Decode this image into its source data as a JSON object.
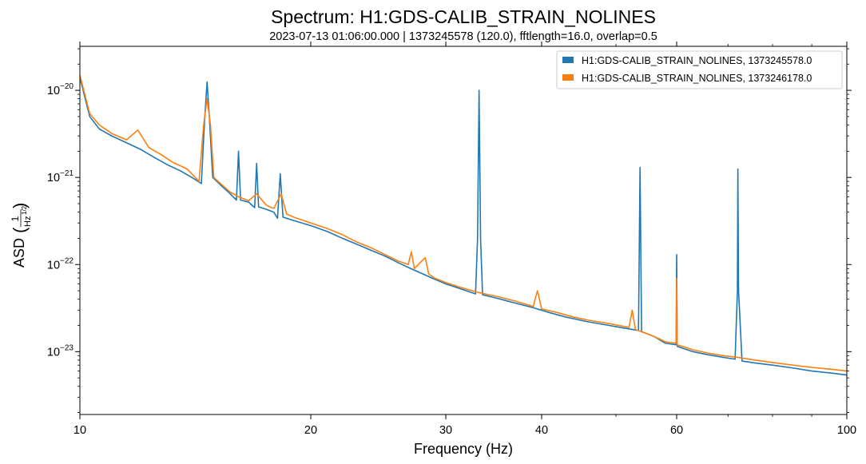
{
  "chart_data": {
    "type": "line",
    "title": "Spectrum: H1:GDS-CALIB_STRAIN_NOLINES",
    "subtitle": "2023-07-13 01:06:00.000 | 1373245578 (120.0), fftlength=16.0, overlap=0.5",
    "xlabel": "Frequency (Hz)",
    "ylabel": "ASD",
    "ylabel_unit": {
      "num": "1",
      "den": "Hz",
      "exp": "1/2"
    },
    "x_scale": "log",
    "y_scale": "log",
    "xlim": [
      10,
      100
    ],
    "ylim": [
      1.9e-24,
      3.2e-20
    ],
    "x_ticks": [
      {
        "value": 10,
        "label": "10"
      },
      {
        "value": 20,
        "label": "20"
      },
      {
        "value": 30,
        "label": "30"
      },
      {
        "value": 40,
        "label": "40"
      },
      {
        "value": 60,
        "label": "60"
      },
      {
        "value": 100,
        "label": "100"
      }
    ],
    "y_ticks": [
      {
        "value": 1e-20,
        "base": "10",
        "exp": "−20"
      },
      {
        "value": 1e-21,
        "base": "10",
        "exp": "−21"
      },
      {
        "value": 1e-22,
        "base": "10",
        "exp": "−22"
      },
      {
        "value": 1e-23,
        "base": "10",
        "exp": "−23"
      }
    ],
    "grid": false,
    "legend_position": "top-right",
    "series": [
      {
        "name": "H1:GDS-CALIB_STRAIN_NOLINES, 1373245578.0",
        "color": "#1f77b4",
        "points": [
          [
            10.0,
            1.4e-20
          ],
          [
            10.3,
            5e-21
          ],
          [
            10.6,
            3.6e-21
          ],
          [
            11.0,
            3e-21
          ],
          [
            11.5,
            2.5e-21
          ],
          [
            12.0,
            2.1e-21
          ],
          [
            12.5,
            1.7e-21
          ],
          [
            13.0,
            1.4e-21
          ],
          [
            13.5,
            1.2e-21
          ],
          [
            14.0,
            1e-21
          ],
          [
            14.4,
            8.5e-22
          ],
          [
            14.55,
            5e-21
          ],
          [
            14.65,
            1.25e-20
          ],
          [
            14.75,
            5e-21
          ],
          [
            14.9,
            1e-21
          ],
          [
            15.3,
            8e-22
          ],
          [
            15.7,
            6.5e-22
          ],
          [
            16.0,
            5.5e-22
          ],
          [
            16.1,
            2e-21
          ],
          [
            16.2,
            5.5e-22
          ],
          [
            16.6,
            5.2e-22
          ],
          [
            16.9,
            4.5e-22
          ],
          [
            17.0,
            1.45e-21
          ],
          [
            17.1,
            4.6e-22
          ],
          [
            17.5,
            4.3e-22
          ],
          [
            17.9,
            4e-22
          ],
          [
            18.1,
            3.4e-22
          ],
          [
            18.25,
            1.1e-21
          ],
          [
            18.4,
            3.5e-22
          ],
          [
            19.0,
            3.2e-22
          ],
          [
            20.0,
            2.8e-22
          ],
          [
            21.0,
            2.4e-22
          ],
          [
            22.0,
            2e-22
          ],
          [
            23.0,
            1.7e-22
          ],
          [
            24.0,
            1.45e-22
          ],
          [
            25.0,
            1.25e-22
          ],
          [
            26.0,
            1.05e-22
          ],
          [
            27.0,
            9e-23
          ],
          [
            28.0,
            7.8e-23
          ],
          [
            29.0,
            6.8e-23
          ],
          [
            30.0,
            6e-23
          ],
          [
            31.5,
            5.2e-23
          ],
          [
            32.8,
            4.6e-23
          ],
          [
            33.0,
            2e-22
          ],
          [
            33.15,
            1e-20
          ],
          [
            33.3,
            2e-22
          ],
          [
            33.5,
            4.5e-23
          ],
          [
            35.0,
            4.1e-23
          ],
          [
            37.0,
            3.6e-23
          ],
          [
            39.0,
            3.2e-23
          ],
          [
            41.0,
            2.8e-23
          ],
          [
            43.0,
            2.5e-23
          ],
          [
            46.0,
            2.2e-23
          ],
          [
            49.0,
            2e-23
          ],
          [
            51.5,
            1.85e-23
          ],
          [
            53.5,
            1.75e-23
          ],
          [
            53.75,
            1.3e-21
          ],
          [
            54.0,
            1.7e-23
          ],
          [
            56.0,
            1.5e-23
          ],
          [
            58.0,
            1.25e-23
          ],
          [
            59.9,
            1.2e-23
          ],
          [
            60.0,
            1.3e-22
          ],
          [
            60.1,
            1.15e-23
          ],
          [
            63.0,
            1e-23
          ],
          [
            66.0,
            9.2e-24
          ],
          [
            69.0,
            8.6e-24
          ],
          [
            71.5,
            8.2e-24
          ],
          [
            72.0,
            5e-23
          ],
          [
            72.1,
            1.25e-21
          ],
          [
            72.25,
            5e-23
          ],
          [
            73.0,
            7.8e-24
          ],
          [
            76.0,
            7.4e-24
          ],
          [
            80.0,
            7e-24
          ],
          [
            85.0,
            6.5e-24
          ],
          [
            90.0,
            6e-24
          ],
          [
            95.0,
            5.7e-24
          ],
          [
            100.0,
            5.4e-24
          ]
        ]
      },
      {
        "name": "H1:GDS-CALIB_STRAIN_NOLINES, 1373246178.0",
        "color": "#ff7f0e",
        "points": [
          [
            10.0,
            1.5e-20
          ],
          [
            10.3,
            5.4e-21
          ],
          [
            10.6,
            4e-21
          ],
          [
            11.0,
            3.2e-21
          ],
          [
            11.5,
            2.7e-21
          ],
          [
            11.9,
            3.5e-21
          ],
          [
            12.3,
            2.2e-21
          ],
          [
            12.8,
            1.8e-21
          ],
          [
            13.2,
            1.5e-21
          ],
          [
            13.8,
            1.25e-21
          ],
          [
            14.3,
            9e-22
          ],
          [
            14.5,
            4e-21
          ],
          [
            14.65,
            8e-21
          ],
          [
            14.8,
            4e-21
          ],
          [
            14.95,
            1e-21
          ],
          [
            15.3,
            8.3e-22
          ],
          [
            15.7,
            6.8e-22
          ],
          [
            16.1,
            6e-22
          ],
          [
            16.6,
            5.4e-22
          ],
          [
            17.0,
            6.5e-22
          ],
          [
            17.5,
            4.8e-22
          ],
          [
            17.9,
            4.4e-22
          ],
          [
            18.3,
            6.5e-22
          ],
          [
            18.6,
            3.8e-22
          ],
          [
            19.0,
            3.5e-22
          ],
          [
            20.0,
            3e-22
          ],
          [
            21.0,
            2.6e-22
          ],
          [
            22.0,
            2.2e-22
          ],
          [
            23.0,
            1.8e-22
          ],
          [
            24.0,
            1.55e-22
          ],
          [
            25.0,
            1.3e-22
          ],
          [
            26.0,
            1.1e-22
          ],
          [
            26.8,
            1e-22
          ],
          [
            27.05,
            1.4e-22
          ],
          [
            27.3,
            9e-23
          ],
          [
            28.2,
            1.2e-22
          ],
          [
            28.5,
            7.8e-23
          ],
          [
            29.0,
            7e-23
          ],
          [
            30.0,
            6.2e-23
          ],
          [
            31.5,
            5.4e-23
          ],
          [
            33.0,
            4.8e-23
          ],
          [
            35.0,
            4.3e-23
          ],
          [
            37.0,
            3.8e-23
          ],
          [
            39.0,
            3.3e-23
          ],
          [
            39.5,
            5e-23
          ],
          [
            40.0,
            3.1e-23
          ],
          [
            42.0,
            2.8e-23
          ],
          [
            44.0,
            2.5e-23
          ],
          [
            46.0,
            2.3e-23
          ],
          [
            49.0,
            2.1e-23
          ],
          [
            52.0,
            1.9e-23
          ],
          [
            52.5,
            3e-23
          ],
          [
            53.0,
            1.8e-23
          ],
          [
            56.0,
            1.5e-23
          ],
          [
            58.0,
            1.3e-23
          ],
          [
            59.9,
            1.25e-23
          ],
          [
            60.0,
            7e-23
          ],
          [
            60.1,
            1.2e-23
          ],
          [
            63.0,
            1.05e-23
          ],
          [
            66.0,
            9.6e-24
          ],
          [
            69.0,
            9e-24
          ],
          [
            72.0,
            8.6e-24
          ],
          [
            76.0,
            8e-24
          ],
          [
            80.0,
            7.5e-24
          ],
          [
            85.0,
            7e-24
          ],
          [
            90.0,
            6.6e-24
          ],
          [
            95.0,
            6.3e-24
          ],
          [
            100.0,
            6e-24
          ]
        ]
      }
    ]
  }
}
